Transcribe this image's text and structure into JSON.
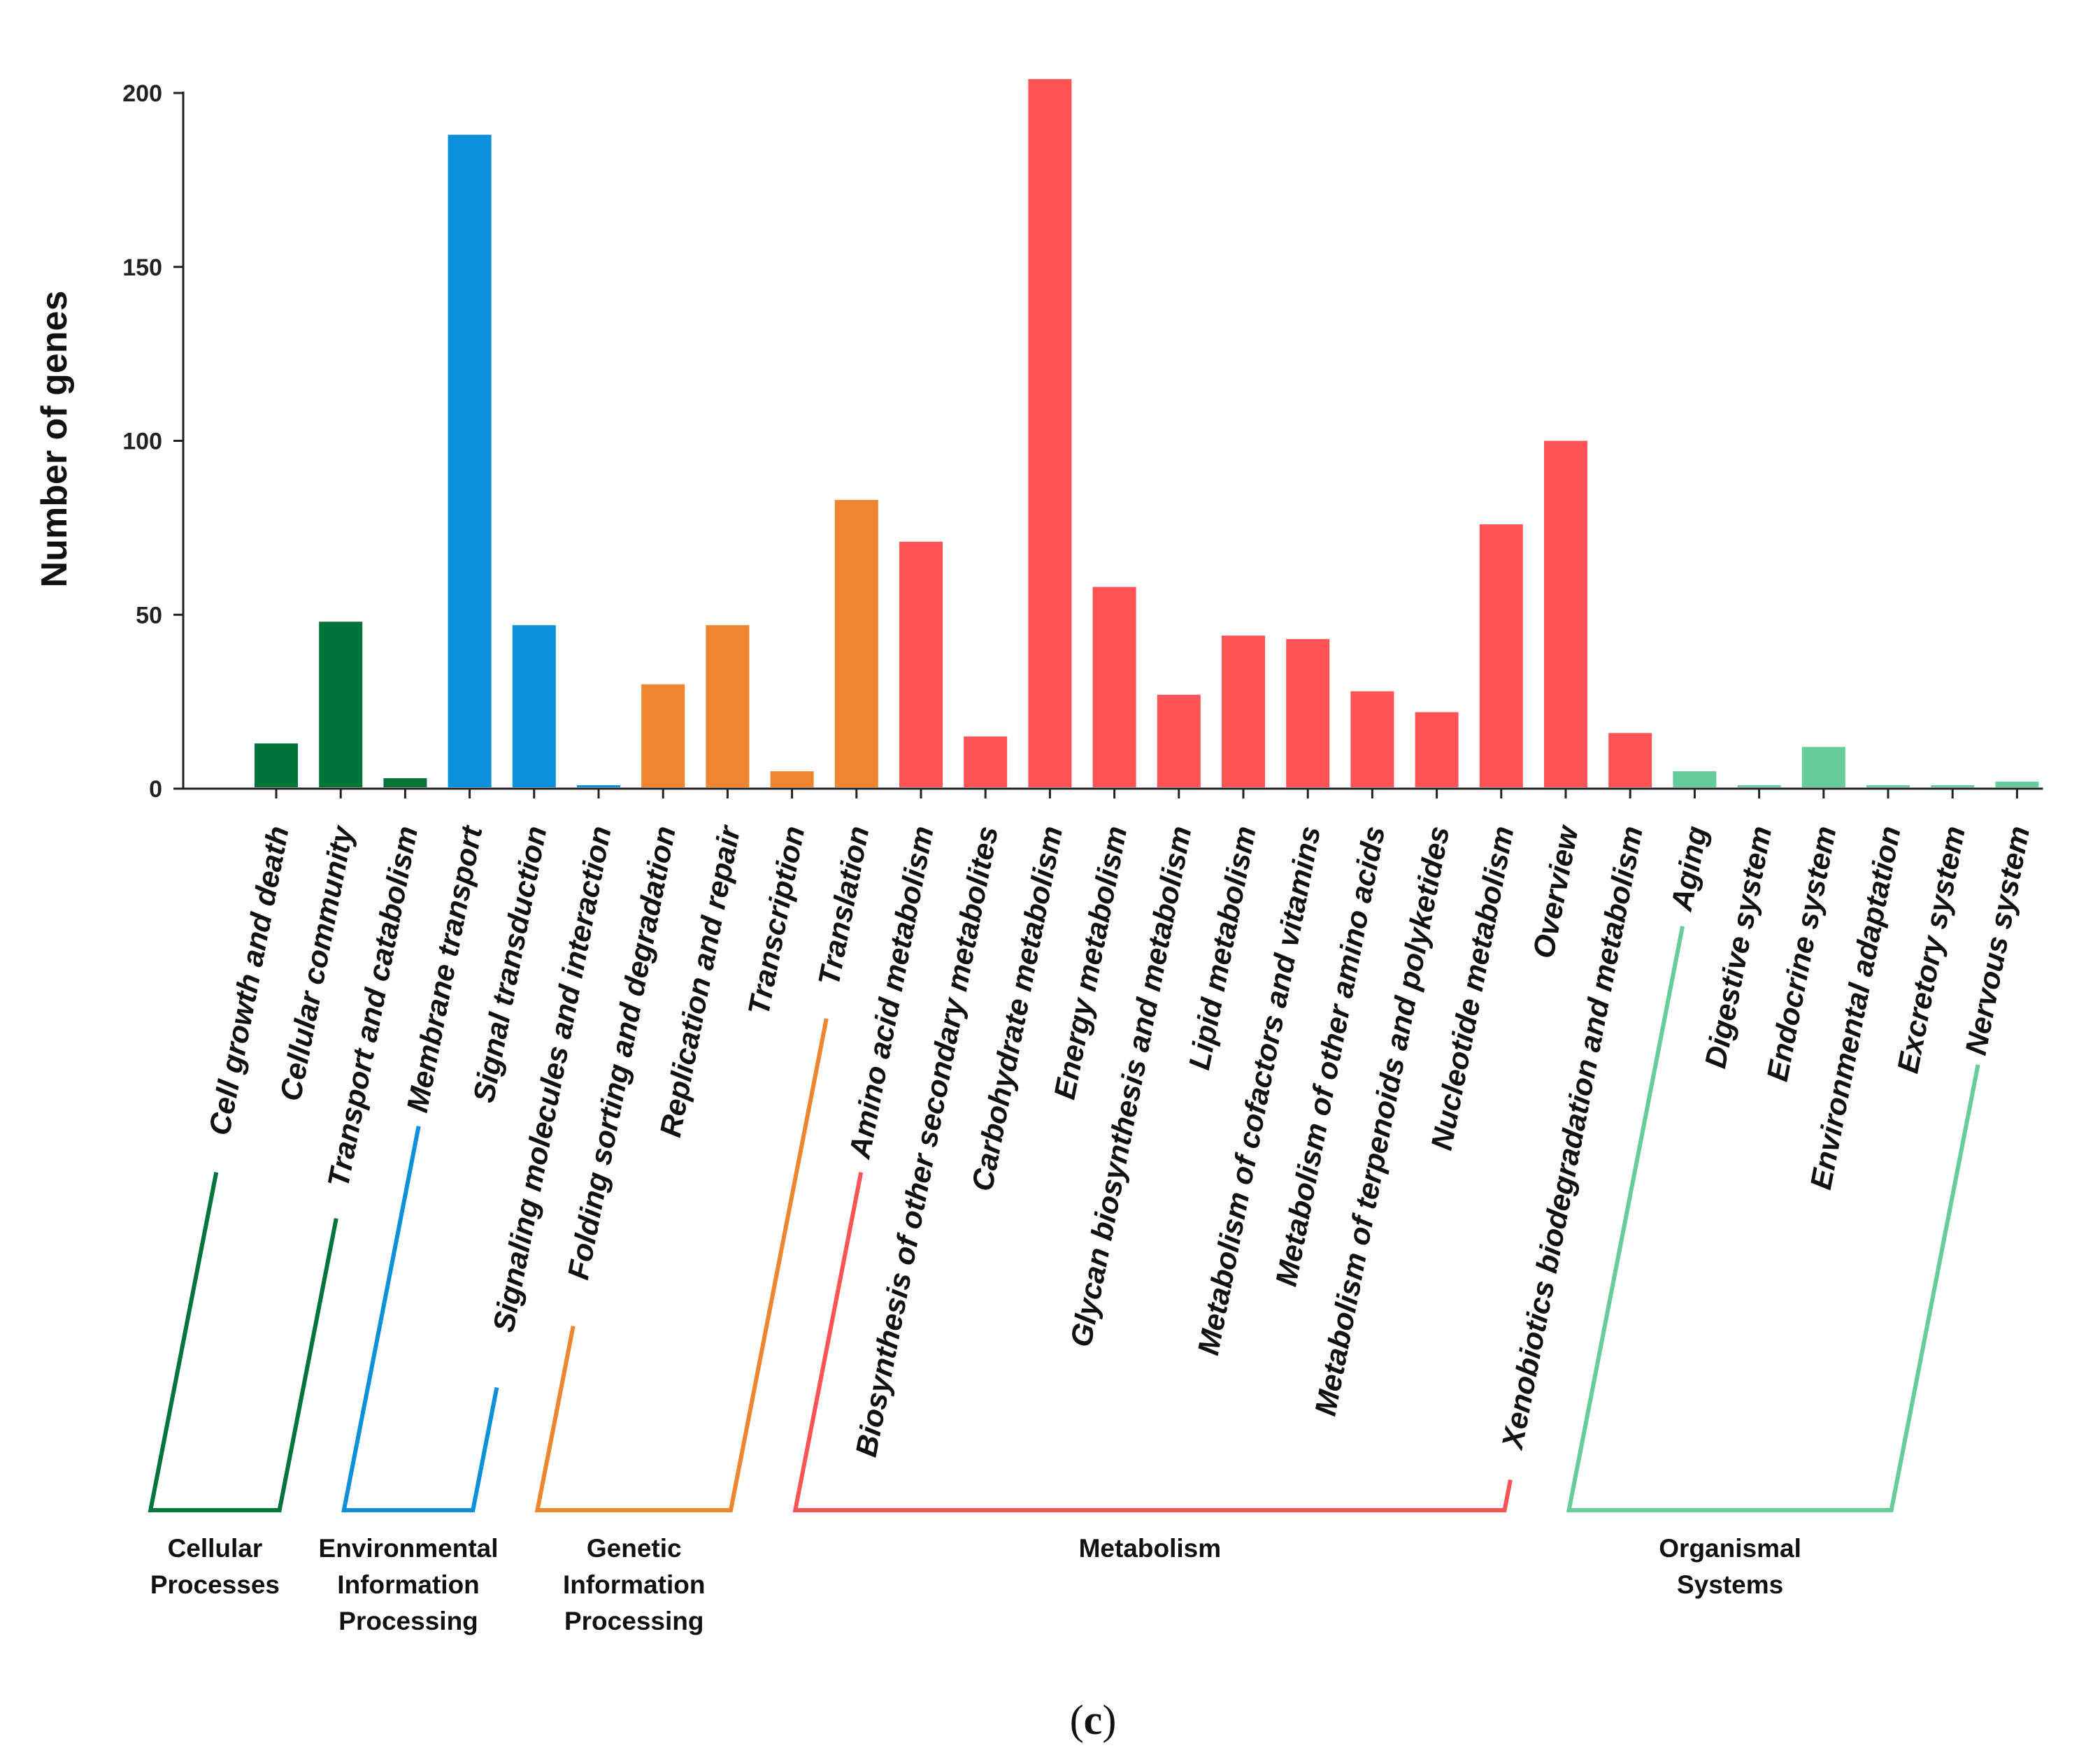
{
  "chart_data": {
    "type": "bar",
    "title": "",
    "xlabel": "",
    "ylabel": "Number of genes",
    "ylim": [
      0,
      200
    ],
    "yticks": [
      0,
      50,
      100,
      150,
      200
    ],
    "ytick_labels": [
      "0",
      "50",
      "100",
      "150",
      "200"
    ],
    "grid": false,
    "panel_label": {
      "open": "(",
      "letter": "c",
      "close": ")"
    },
    "colors": {
      "Cellular Processes": "#00743a",
      "Environmental Information Processing": "#0b90dc",
      "Genetic Information Processing": "#f08530",
      "Metabolism": "#fe5455",
      "Organismal Systems": "#66cd9a"
    },
    "categories": [
      "Cell growth and death",
      "Cellular community",
      "Transport and catabolism",
      "Membrane transport",
      "Signal transduction",
      "Signaling molecules and interaction",
      "Folding sorting and degradation",
      "Replication and repair",
      "Transcription",
      "Translation",
      "Amino acid metabolism",
      "Biosynthesis of other secondary metabolites",
      "Carbohydrate metabolism",
      "Energy metabolism",
      "Glycan biosynthesis and metabolism",
      "Lipid metabolism",
      "Metabolism of cofactors and vitamins",
      "Metabolism of other amino acids",
      "Metabolism of terpenoids and polyketides",
      "Nucleotide metabolism",
      "Overview",
      "Xenobiotics biodegradation and metabolism",
      "Aging",
      "Digestive system",
      "Endocrine system",
      "Environmental adaptation",
      "Excretory system",
      "Nervous system"
    ],
    "values": [
      13,
      48,
      3,
      188,
      47,
      1,
      30,
      47,
      5,
      83,
      71,
      15,
      204,
      58,
      27,
      44,
      43,
      28,
      22,
      76,
      100,
      16,
      5,
      1,
      12,
      1,
      1,
      2
    ],
    "groups": [
      {
        "name": "Cellular Processes",
        "label_lines": [
          "Cellular",
          "Processes"
        ],
        "start": 0,
        "end": 2
      },
      {
        "name": "Environmental Information Processing",
        "label_lines": [
          "Environmental",
          "Information",
          "Processing"
        ],
        "start": 3,
        "end": 5
      },
      {
        "name": "Genetic Information Processing",
        "label_lines": [
          "Genetic",
          "Information",
          "Processing"
        ],
        "start": 6,
        "end": 9
      },
      {
        "name": "Metabolism",
        "label_lines": [
          "Metabolism"
        ],
        "start": 10,
        "end": 21
      },
      {
        "name": "Organismal Systems",
        "label_lines": [
          "Organismal",
          "Systems"
        ],
        "start": 22,
        "end": 27
      }
    ]
  }
}
